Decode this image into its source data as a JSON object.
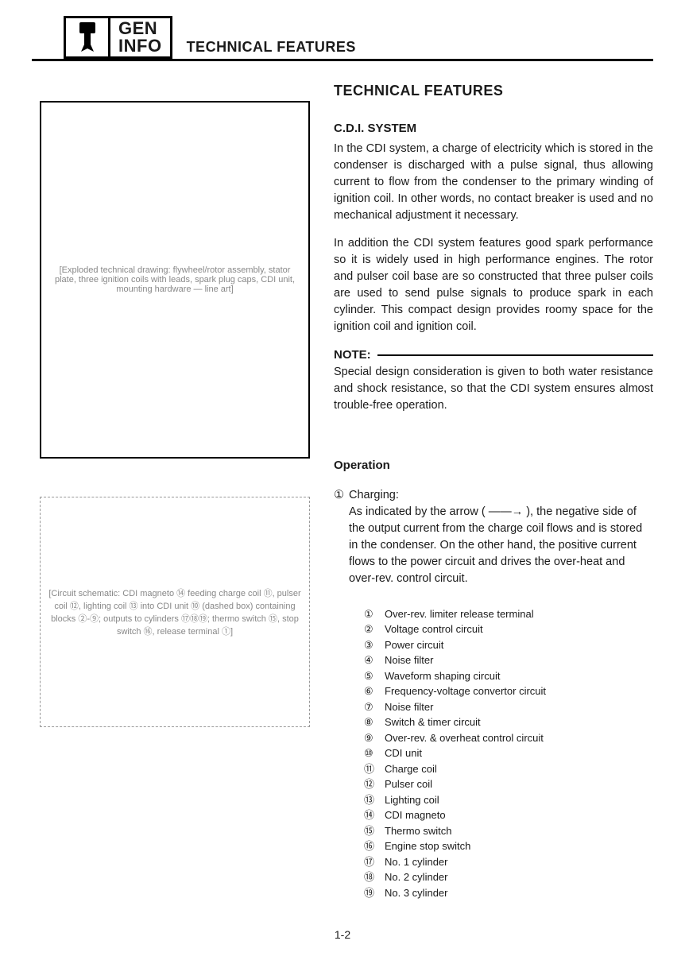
{
  "header": {
    "gen": "GEN",
    "info": "INFO",
    "breadcrumb": "TECHNICAL FEATURES"
  },
  "main_heading": "TECHNICAL FEATURES",
  "section1": {
    "heading": "C.D.I. SYSTEM",
    "para1": "In the CDI system, a charge of electricity which is stored in the condenser is discharged with a pulse signal, thus allowing current to flow from the condenser to the primary winding of ignition coil. In other words, no contact breaker is used and no mechanical adjustment it necessary.",
    "para2": "In addition the CDI system features good spark performance so it is widely used in high performance engines. The rotor and pulser coil base are so constructed that three pulser coils are used to send pulse signals to produce spark in each cylinder. This compact design provides roomy space for the ignition coil and ignition coil."
  },
  "note": {
    "label": "NOTE:",
    "text": "Special design consideration is given to both water resistance and shock resistance, so that the CDI system ensures almost trouble-free operation."
  },
  "operation": {
    "heading": "Operation",
    "charging_marker": "①",
    "charging_label": "Charging:",
    "charging_text": "As indicated by the arrow ( ——→ ), the negative side of the output current from the charge coil flows and is stored in the condenser. On the other hand, the positive current flows to the power circuit and drives the over-heat and over-rev. control circuit."
  },
  "legend": [
    {
      "n": "①",
      "t": "Over-rev. limiter release terminal"
    },
    {
      "n": "②",
      "t": "Voltage control circuit"
    },
    {
      "n": "③",
      "t": "Power circuit"
    },
    {
      "n": "④",
      "t": "Noise filter"
    },
    {
      "n": "⑤",
      "t": "Waveform shaping circuit"
    },
    {
      "n": "⑥",
      "t": "Frequency-voltage convertor circuit"
    },
    {
      "n": "⑦",
      "t": "Noise filter"
    },
    {
      "n": "⑧",
      "t": "Switch & timer circuit"
    },
    {
      "n": "⑨",
      "t": "Over-rev. & overheat control circuit"
    },
    {
      "n": "⑩",
      "t": "CDI unit"
    },
    {
      "n": "⑪",
      "t": "Charge coil"
    },
    {
      "n": "⑫",
      "t": "Pulser coil"
    },
    {
      "n": "⑬",
      "t": "Lighting coil"
    },
    {
      "n": "⑭",
      "t": "CDI magneto"
    },
    {
      "n": "⑮",
      "t": "Thermo switch"
    },
    {
      "n": "⑯",
      "t": "Engine stop switch"
    },
    {
      "n": "⑰",
      "t": "No. 1 cylinder"
    },
    {
      "n": "⑱",
      "t": "No. 2 cylinder"
    },
    {
      "n": "⑲",
      "t": "No. 3 cylinder"
    }
  ],
  "figures": {
    "fig1_alt": "[Exploded technical drawing: flywheel/rotor assembly, stator plate, three ignition coils with leads, spark plug caps, CDI unit, mounting hardware — line art]",
    "fig2_alt": "[Circuit schematic: CDI magneto ⑭ feeding charge coil ⑪, pulser coil ⑫, lighting coil ⑬ into CDI unit ⑩ (dashed box) containing blocks ②-⑨; outputs to cylinders ⑰⑱⑲; thermo switch ⑮, stop switch ⑯, release terminal ①]"
  },
  "page_number": "1-2"
}
